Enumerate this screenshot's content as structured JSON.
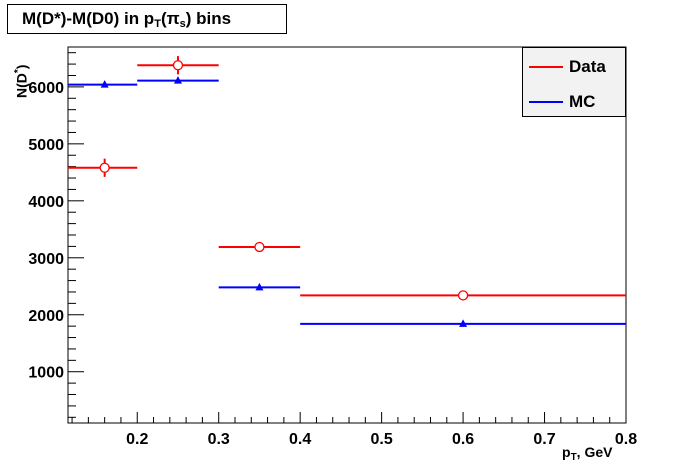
{
  "title": {
    "prefix": "M(D*)-M(D0) in p",
    "sub1": "T",
    "mid": "(π",
    "sub2": "s",
    "suffix": ") bins"
  },
  "legend": {
    "items": [
      {
        "label": "Data",
        "color": "#ff0000"
      },
      {
        "label": "MC",
        "color": "#0000ff"
      }
    ]
  },
  "axes": {
    "ylabel_main": "N(D",
    "ylabel_sup": "*",
    "ylabel_end": ")",
    "xlabel_main": "p",
    "xlabel_sub": "T",
    "xlabel_end": ", GeV"
  },
  "chart_data": {
    "type": "scatter",
    "title": "M(D*)-M(D0) in pT(πs) bins",
    "xlabel": "pT, GeV",
    "ylabel": "N(D*)",
    "xlim": [
      0.115,
      0.8
    ],
    "ylim": [
      100,
      6700
    ],
    "x_ticks": [
      0.2,
      0.3,
      0.4,
      0.5,
      0.6,
      0.7,
      0.8
    ],
    "x_tick_labels": [
      "0.2",
      "0.3",
      "0.4",
      "0.5",
      "0.6",
      "0.7",
      "0.8"
    ],
    "y_ticks": [
      1000,
      2000,
      3000,
      4000,
      5000,
      6000
    ],
    "y_tick_labels": [
      "1000",
      "2000",
      "3000",
      "4000",
      "5000",
      "6000"
    ],
    "legend_position": "top-right",
    "series": [
      {
        "name": "Data",
        "color": "#ff0000",
        "marker": "open-circle",
        "points": [
          {
            "x": 0.16,
            "xlo": 0.115,
            "xhi": 0.2,
            "y": 4580,
            "yerr": 160
          },
          {
            "x": 0.25,
            "xlo": 0.2,
            "xhi": 0.3,
            "y": 6380,
            "yerr": 160
          },
          {
            "x": 0.35,
            "xlo": 0.3,
            "xhi": 0.4,
            "y": 3190,
            "yerr": 50
          },
          {
            "x": 0.6,
            "xlo": 0.4,
            "xhi": 0.8,
            "y": 2340,
            "yerr": 40
          }
        ]
      },
      {
        "name": "MC",
        "color": "#0000ff",
        "marker": "filled-triangle",
        "points": [
          {
            "x": 0.16,
            "xlo": 0.115,
            "xhi": 0.2,
            "y": 6040,
            "yerr": 50
          },
          {
            "x": 0.25,
            "xlo": 0.2,
            "xhi": 0.3,
            "y": 6110,
            "yerr": 50
          },
          {
            "x": 0.35,
            "xlo": 0.3,
            "xhi": 0.4,
            "y": 2480,
            "yerr": 30
          },
          {
            "x": 0.6,
            "xlo": 0.4,
            "xhi": 0.8,
            "y": 1840,
            "yerr": 20
          }
        ]
      }
    ]
  }
}
